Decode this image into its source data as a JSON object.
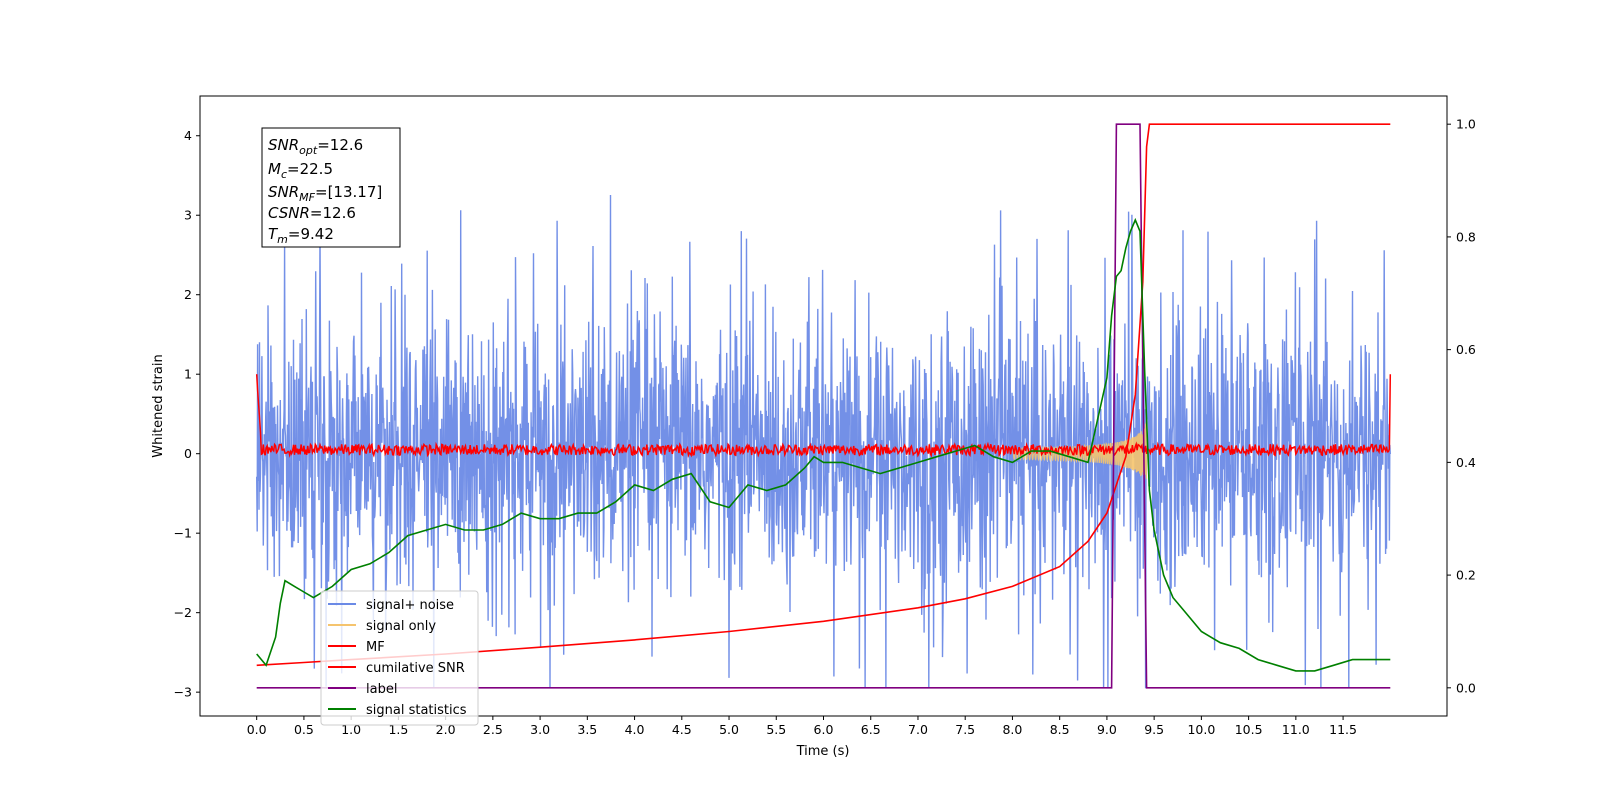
{
  "chart_data": {
    "type": "line",
    "title": "",
    "xlabel": "Time (s)",
    "ylabel": "Whitened strain",
    "xlim": [
      -0.6,
      12.6
    ],
    "ylim": [
      -3.3,
      4.5
    ],
    "y2lim": [
      -0.05,
      1.05
    ],
    "x_ticks": [
      0.0,
      0.5,
      1.0,
      1.5,
      2.0,
      2.5,
      3.0,
      3.5,
      4.0,
      4.5,
      5.0,
      5.5,
      6.0,
      6.5,
      7.0,
      7.5,
      8.0,
      8.5,
      9.0,
      9.5,
      10.0,
      10.5,
      11.0,
      11.5
    ],
    "x_tick_labels": [
      "0.0",
      "0.5",
      "1.0",
      "1.5",
      "2.0",
      "2.5",
      "3.0",
      "3.5",
      "4.0",
      "4.5",
      "5.0",
      "5.5",
      "6.0",
      "6.5",
      "7.0",
      "7.5",
      "8.0",
      "8.5",
      "9.0",
      "9.5",
      "10.0",
      "10.5",
      "11.0",
      "11.5"
    ],
    "y_ticks": [
      -3,
      -2,
      -1,
      0,
      1,
      2,
      3,
      4
    ],
    "y_tick_labels": [
      "−3",
      "−2",
      "−1",
      "0",
      "1",
      "2",
      "3",
      "4"
    ],
    "y2_ticks": [
      0.0,
      0.2,
      0.4,
      0.6,
      0.8,
      1.0
    ],
    "y2_tick_labels": [
      "0.0",
      "0.2",
      "0.4",
      "0.6",
      "0.8",
      "1.0"
    ],
    "grid": false,
    "legend_position": "lower-left",
    "annotation": {
      "snr_opt": {
        "sym": "SNR",
        "sub": "opt",
        "value": "=12.6"
      },
      "mc": {
        "sym": "M",
        "sub": "c",
        "value": "=22.5"
      },
      "snr_mf": {
        "sym": "SNR",
        "sub": "MF",
        "value": "=[13.17]"
      },
      "csnr": {
        "sym": "CSNR",
        "sub": "",
        "value": "=12.6"
      },
      "tm": {
        "sym": "T",
        "sub": "m",
        "value": "=9.42"
      }
    },
    "series": [
      {
        "name": "signal+ noise",
        "axis": "left",
        "color": "#6b8ae6",
        "description": "whitened noise, sigma about 1, envelope roughly -2.5 to 2.8 with spikes up to 3.6"
      },
      {
        "name": "signal only",
        "axis": "left",
        "color": "#f5c46e",
        "chirp_start": 8.0,
        "chirp_end": 9.42,
        "peak_amplitude": 0.7
      },
      {
        "name": "MF",
        "axis": "left",
        "color": "#ff0000",
        "baseline": 0.05,
        "noise_amplitude": 0.07,
        "start_value": 1.0,
        "end_value": 1.0
      },
      {
        "name": "cumilative SNR",
        "axis": "right",
        "color": "#ff0000",
        "x": [
          0.0,
          0.5,
          1.0,
          2.0,
          3.0,
          4.0,
          5.0,
          6.0,
          7.0,
          7.5,
          8.0,
          8.5,
          8.8,
          9.0,
          9.2,
          9.3,
          9.38,
          9.42,
          9.45,
          12.0
        ],
        "y": [
          0.04,
          0.045,
          0.05,
          0.06,
          0.072,
          0.085,
          0.1,
          0.118,
          0.142,
          0.158,
          0.18,
          0.215,
          0.26,
          0.31,
          0.41,
          0.52,
          0.72,
          0.96,
          1.0,
          1.0
        ]
      },
      {
        "name": "label",
        "axis": "right",
        "color": "#800080",
        "x": [
          0.0,
          9.05,
          9.1,
          9.35,
          9.42,
          12.0
        ],
        "y": [
          0.0,
          0.0,
          1.0,
          1.0,
          0.0,
          0.0
        ]
      },
      {
        "name": "signal statistics",
        "axis": "right",
        "color": "#008000",
        "x": [
          0.0,
          0.05,
          0.1,
          0.2,
          0.25,
          0.3,
          0.4,
          0.5,
          0.6,
          0.8,
          1.0,
          1.2,
          1.4,
          1.6,
          1.8,
          2.0,
          2.2,
          2.4,
          2.6,
          2.8,
          3.0,
          3.2,
          3.4,
          3.6,
          3.8,
          4.0,
          4.2,
          4.4,
          4.6,
          4.8,
          5.0,
          5.2,
          5.4,
          5.6,
          5.8,
          5.9,
          6.0,
          6.2,
          6.4,
          6.6,
          6.8,
          7.0,
          7.2,
          7.4,
          7.6,
          7.8,
          8.0,
          8.2,
          8.4,
          8.6,
          8.8,
          9.0,
          9.05,
          9.1,
          9.15,
          9.2,
          9.25,
          9.3,
          9.35,
          9.4,
          9.45,
          9.5,
          9.6,
          9.7,
          9.8,
          10.0,
          10.2,
          10.4,
          10.6,
          10.8,
          11.0,
          11.2,
          11.4,
          11.6,
          11.8,
          12.0
        ],
        "y": [
          0.06,
          0.05,
          0.04,
          0.09,
          0.15,
          0.19,
          0.18,
          0.17,
          0.16,
          0.18,
          0.21,
          0.22,
          0.24,
          0.27,
          0.28,
          0.29,
          0.28,
          0.28,
          0.29,
          0.31,
          0.3,
          0.3,
          0.31,
          0.31,
          0.33,
          0.36,
          0.35,
          0.37,
          0.38,
          0.33,
          0.32,
          0.36,
          0.35,
          0.36,
          0.39,
          0.41,
          0.4,
          0.4,
          0.39,
          0.38,
          0.39,
          0.4,
          0.41,
          0.42,
          0.43,
          0.41,
          0.4,
          0.42,
          0.42,
          0.41,
          0.4,
          0.55,
          0.66,
          0.73,
          0.74,
          0.78,
          0.81,
          0.83,
          0.81,
          0.56,
          0.35,
          0.28,
          0.2,
          0.16,
          0.14,
          0.1,
          0.08,
          0.07,
          0.05,
          0.04,
          0.03,
          0.03,
          0.04,
          0.05,
          0.05,
          0.05
        ]
      }
    ]
  }
}
